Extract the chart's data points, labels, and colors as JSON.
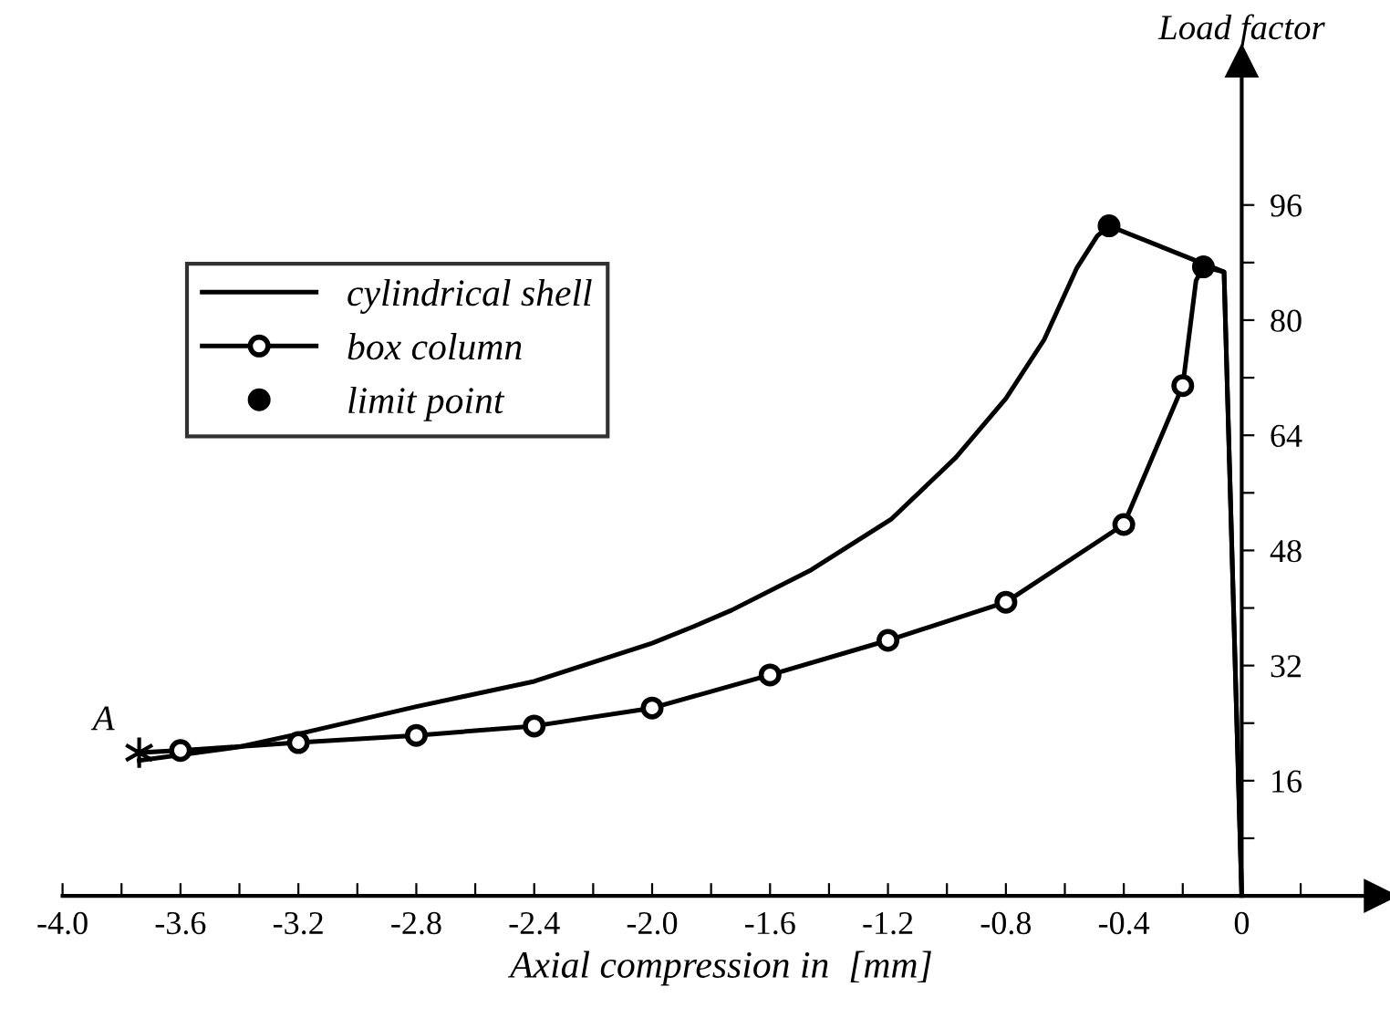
{
  "chart_data": {
    "type": "line",
    "xlabel": "Axial compression in  [mm]",
    "ylabel": "Load factor",
    "xlim": [
      -4.0,
      0.47
    ],
    "ylim": [
      0,
      116
    ],
    "xticks": [
      {
        "value": -4.0,
        "label": "-4.0"
      },
      {
        "value": -3.8,
        "label": null
      },
      -3.6,
      {
        "value": -3.4,
        "label": null
      },
      -3.2,
      {
        "value": -3.0,
        "label": null
      },
      -2.8,
      {
        "value": -2.6,
        "label": null
      },
      -2.4,
      {
        "value": -2.2,
        "label": null
      },
      {
        "value": -2.0,
        "label": "-2.0"
      },
      {
        "value": -1.8,
        "label": null
      },
      -1.6,
      {
        "value": -1.4,
        "label": null
      },
      -1.2,
      {
        "value": -1.0,
        "label": null
      },
      -0.8,
      {
        "value": -0.6,
        "label": null
      },
      -0.4,
      {
        "value": -0.2,
        "label": null
      },
      0,
      {
        "value": 0.2,
        "label": null
      }
    ],
    "yticks": [
      {
        "value": 8,
        "label": null
      },
      16,
      {
        "value": 24,
        "label": null
      },
      32,
      {
        "value": 40,
        "label": null
      },
      48,
      {
        "value": 56,
        "label": null
      },
      64,
      {
        "value": 72,
        "label": null
      },
      80,
      {
        "value": 88,
        "label": null
      },
      96
    ],
    "grid": false,
    "legend": "top left",
    "annotations": [
      {
        "text": "A",
        "x": -3.74,
        "y": 19.9
      }
    ],
    "series": [
      {
        "name": "cylindrical shell",
        "color": "#000000",
        "marker": "none",
        "x": [
          -3.74,
          -3.4,
          -3.2,
          -2.8,
          -2.4,
          -2.0,
          -1.855,
          -1.73,
          -1.46,
          -1.19,
          -0.97,
          -0.8,
          -0.67,
          -0.56,
          -0.49,
          -0.45,
          -0.06,
          0
        ],
        "values": [
          18.8,
          20.7,
          22.5,
          26.3,
          29.8,
          35.1,
          37.5,
          39.7,
          45.3,
          52.3,
          60.9,
          69.1,
          77.3,
          87.2,
          91.7,
          93.1,
          86.7,
          0
        ]
      },
      {
        "color": "#000000",
        "x": [
          -3.74,
          -3.6
        ],
        "values": [
          19.9,
          20.2
        ]
      },
      {
        "name": "box column",
        "color": "#000000",
        "marker": "circle",
        "x": [
          -3.6,
          -3.2,
          -2.8,
          -2.4,
          -2.0,
          -1.6,
          -1.2,
          -0.8,
          -0.4,
          -0.2
        ],
        "values": [
          20.2,
          21.3,
          22.3,
          23.6,
          26.1,
          30.7,
          35.5,
          40.8,
          51.6,
          70.9
        ]
      },
      {
        "color": "#000000",
        "x": [
          -0.2,
          -0.155,
          -0.13,
          -0.06,
          0
        ],
        "values": [
          70.9,
          85.5,
          87.4,
          86.7,
          0
        ]
      },
      {
        "name": "limit point",
        "type": "scatter",
        "color": "#000000",
        "marker": "circle",
        "x": [
          -0.45,
          -0.13
        ],
        "values": [
          93.1,
          87.4
        ]
      },
      {
        "type": "scatter",
        "color": "#000000",
        "marker": "cross",
        "x": [
          -3.74
        ],
        "values": [
          19.9
        ]
      }
    ]
  }
}
